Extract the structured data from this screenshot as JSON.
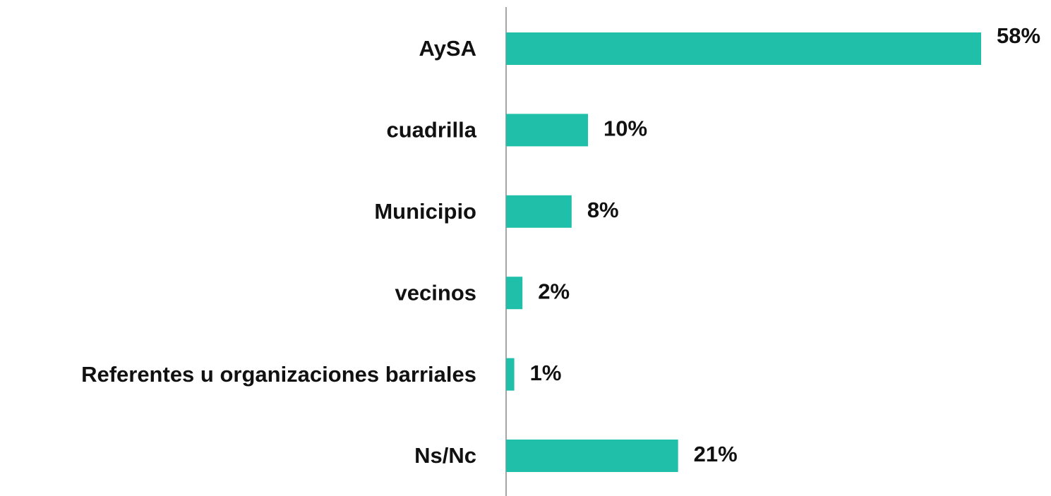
{
  "chart_data": {
    "type": "bar",
    "orientation": "horizontal",
    "categories": [
      "AySA",
      "cuadrilla",
      "Municipio",
      "vecinos",
      "Referentes u organizaciones barriales",
      "Ns/Nc"
    ],
    "values": [
      58,
      10,
      8,
      2,
      1,
      21
    ],
    "value_labels": [
      "58%",
      "10%",
      "8%",
      "2%",
      "1%",
      "21%"
    ],
    "color": "#1fbfaa"
  }
}
